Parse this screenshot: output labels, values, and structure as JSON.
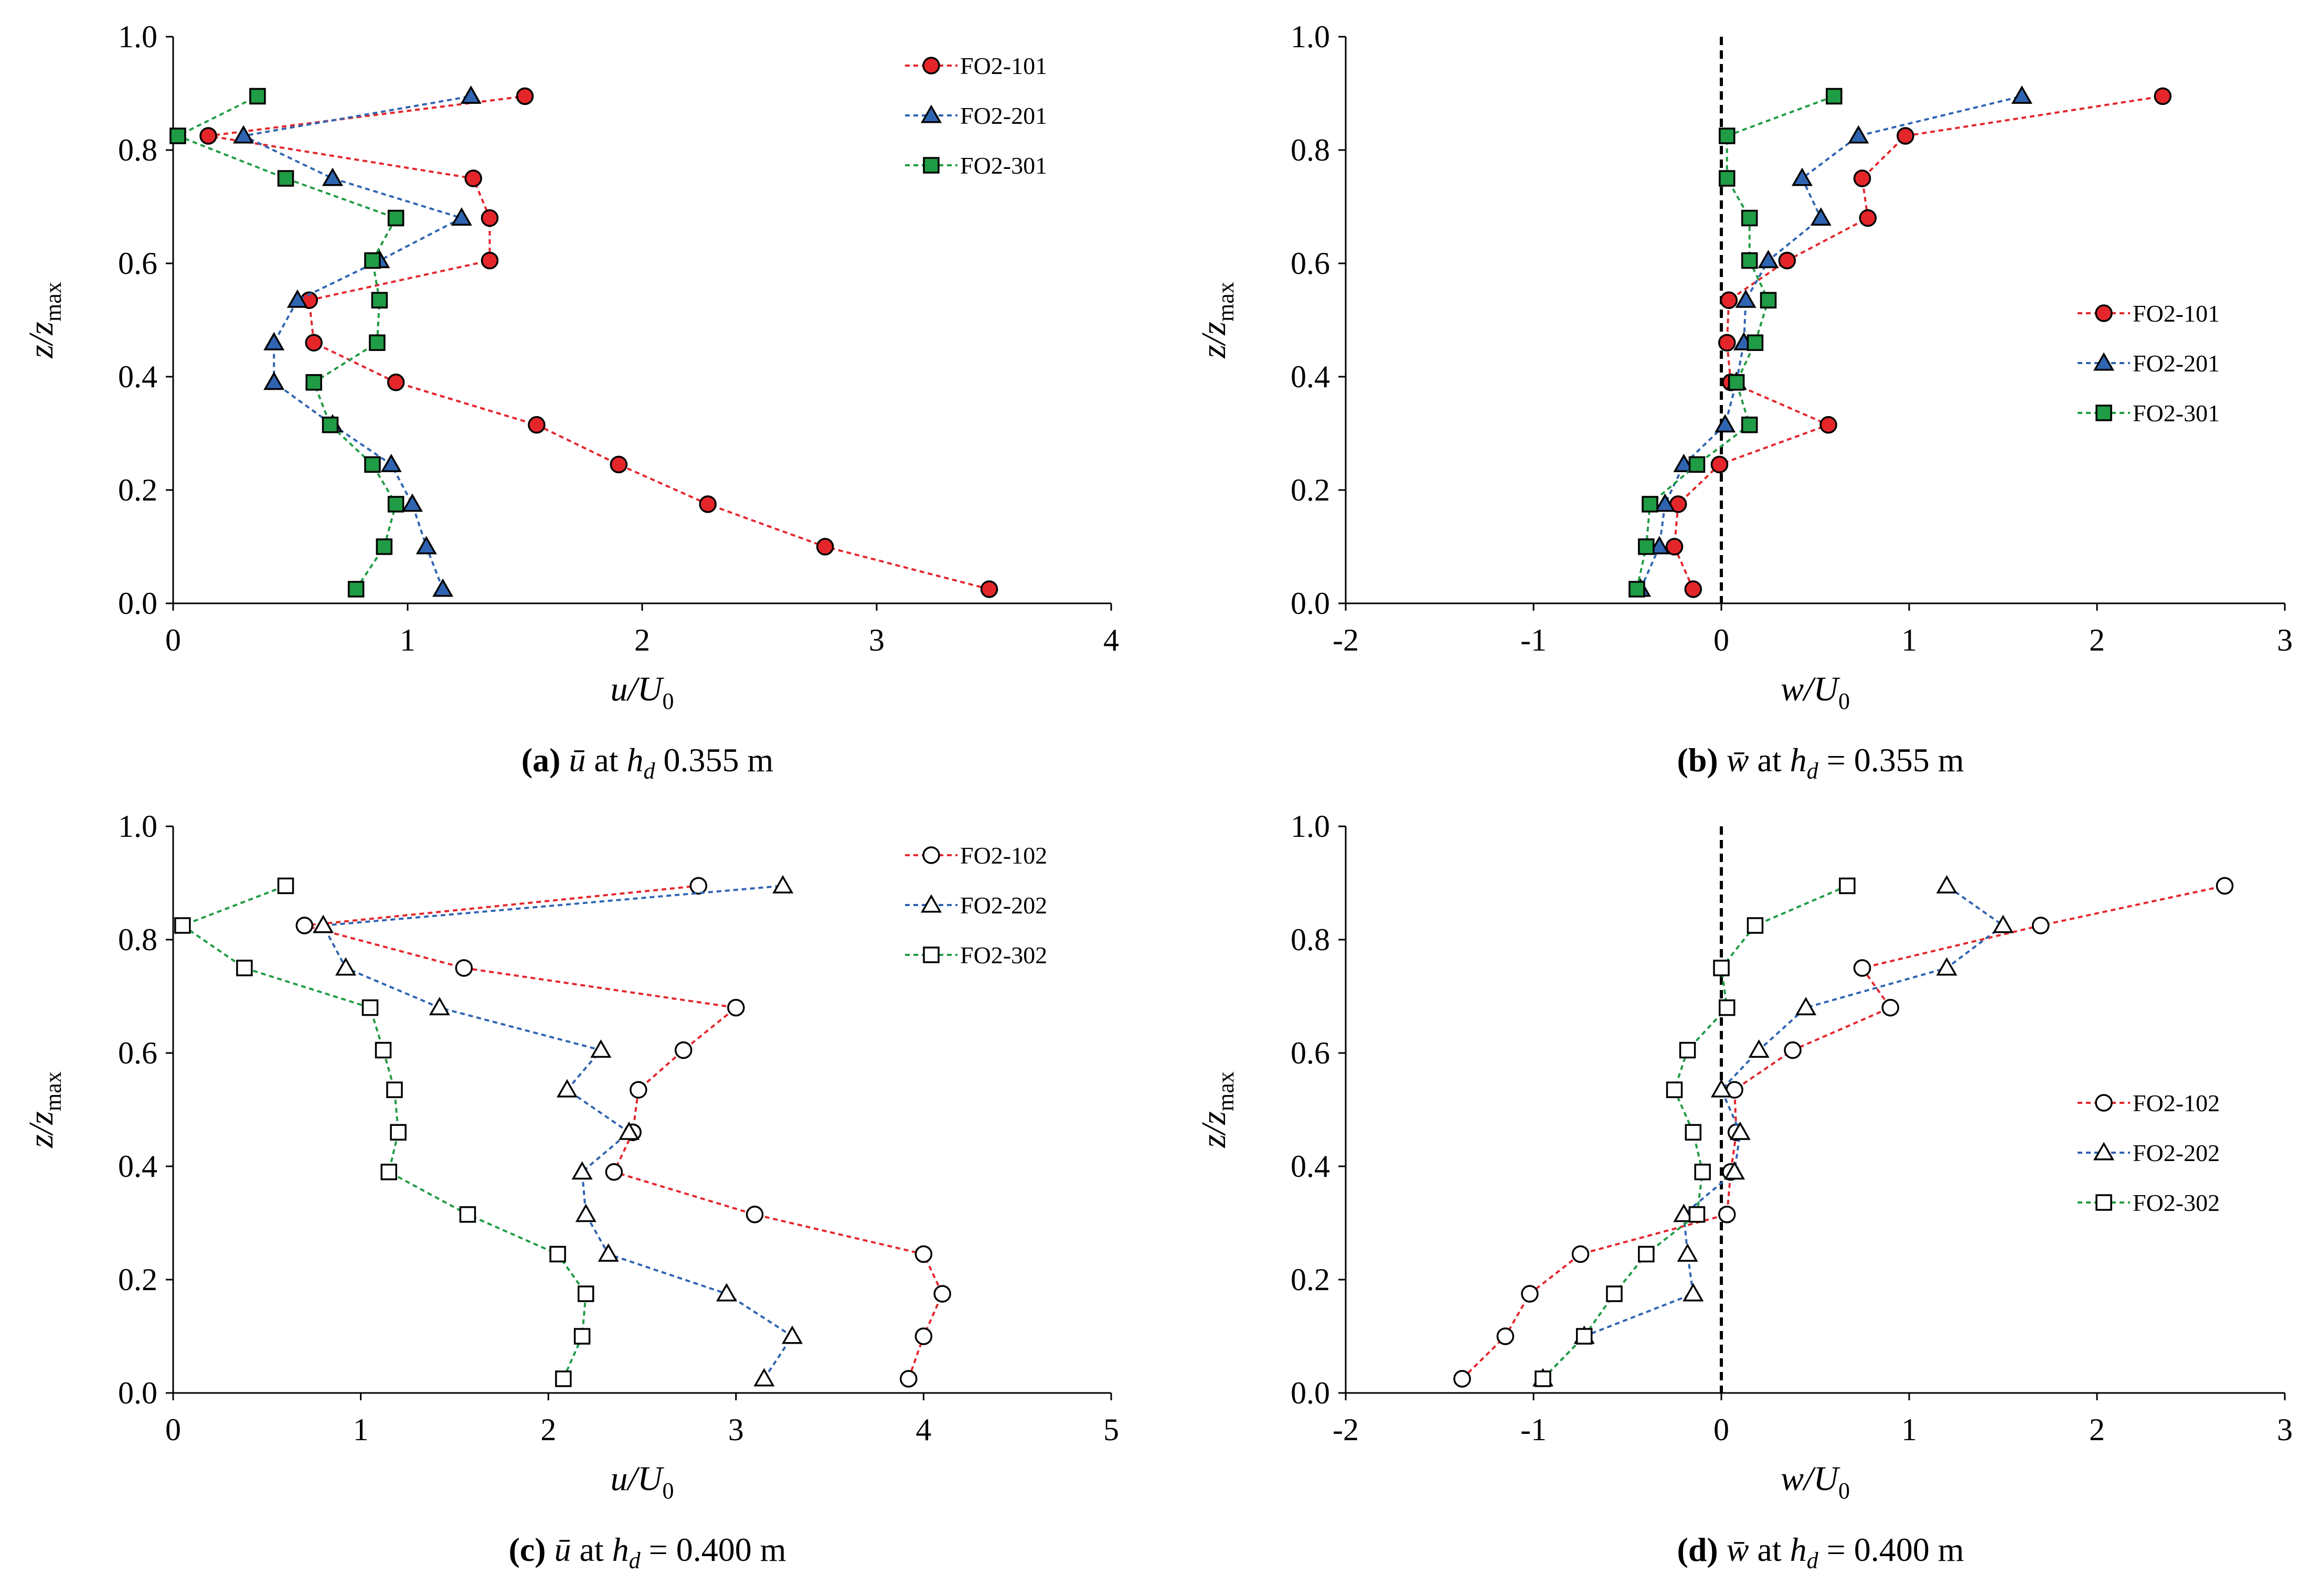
{
  "chart_data": [
    {
      "type": "scatter",
      "id": "a",
      "caption": {
        "label": "(a)",
        "symbol": "ū",
        "text": "at",
        "var": "h",
        "sub": "d",
        "value": "0.355 m"
      },
      "xlabel": "u/U",
      "xlabel_sub": "0",
      "ylabel": "z/z",
      "ylabel_sub": "max",
      "xlim": [
        0,
        4
      ],
      "ylim": [
        0,
        1.0
      ],
      "xticks": [
        "0",
        "1",
        "2",
        "3",
        "4"
      ],
      "yticks": [
        "0.0",
        "0.2",
        "0.4",
        "0.6",
        "0.8",
        "1.0"
      ],
      "zero_line": false,
      "legend": "top-right",
      "series": [
        {
          "name": "FO2-101",
          "color": "#e4262b",
          "marker": "circle",
          "filled": true,
          "x": [
            3.48,
            2.78,
            2.28,
            1.9,
            1.55,
            0.95,
            0.6,
            0.58,
            1.35,
            1.35,
            1.28,
            0.15,
            1.5
          ],
          "y": [
            0.025,
            0.1,
            0.175,
            0.245,
            0.315,
            0.39,
            0.46,
            0.535,
            0.605,
            0.68,
            0.75,
            0.825,
            0.895
          ]
        },
        {
          "name": "FO2-201",
          "color": "#2f64b1",
          "marker": "triangle",
          "filled": true,
          "x": [
            1.15,
            1.08,
            1.02,
            0.93,
            0.68,
            0.43,
            0.43,
            0.53,
            0.88,
            1.23,
            0.68,
            0.3,
            1.27
          ],
          "y": [
            0.025,
            0.1,
            0.175,
            0.245,
            0.315,
            0.39,
            0.46,
            0.535,
            0.605,
            0.68,
            0.75,
            0.825,
            0.895
          ]
        },
        {
          "name": "FO2-301",
          "color": "#1f9c45",
          "marker": "square",
          "filled": true,
          "x": [
            0.78,
            0.9,
            0.95,
            0.85,
            0.67,
            0.6,
            0.87,
            0.88,
            0.85,
            0.95,
            0.48,
            0.02,
            0.36
          ],
          "y": [
            0.025,
            0.1,
            0.175,
            0.245,
            0.315,
            0.39,
            0.46,
            0.535,
            0.605,
            0.68,
            0.75,
            0.825,
            0.895
          ]
        }
      ]
    },
    {
      "type": "scatter",
      "id": "b",
      "caption": {
        "label": "(b)",
        "symbol": "w̄",
        "text": "at",
        "var": "h",
        "sub": "d",
        "value": "= 0.355 m"
      },
      "xlabel": "w/U",
      "xlabel_sub": "0",
      "ylabel": "z/z",
      "ylabel_sub": "max",
      "xlim": [
        -2,
        3
      ],
      "ylim": [
        0,
        1.0
      ],
      "xticks": [
        "-2",
        "-1",
        "0",
        "1",
        "2",
        "3"
      ],
      "yticks": [
        "0.0",
        "0.2",
        "0.4",
        "0.6",
        "0.8",
        "1.0"
      ],
      "zero_line": true,
      "legend": "middle-right",
      "series": [
        {
          "name": "FO2-101",
          "color": "#e4262b",
          "marker": "circle",
          "filled": true,
          "x": [
            -0.15,
            -0.25,
            -0.23,
            -0.01,
            0.57,
            0.05,
            0.03,
            0.04,
            0.35,
            0.78,
            0.75,
            0.98,
            2.35
          ],
          "y": [
            0.025,
            0.1,
            0.175,
            0.245,
            0.315,
            0.39,
            0.46,
            0.535,
            0.605,
            0.68,
            0.75,
            0.825,
            0.895
          ]
        },
        {
          "name": "FO2-201",
          "color": "#2f64b1",
          "marker": "triangle",
          "filled": true,
          "x": [
            -0.43,
            -0.33,
            -0.3,
            -0.2,
            0.02,
            0.08,
            0.12,
            0.13,
            0.25,
            0.53,
            0.43,
            0.73,
            1.6
          ],
          "y": [
            0.025,
            0.1,
            0.175,
            0.245,
            0.315,
            0.39,
            0.46,
            0.535,
            0.605,
            0.68,
            0.75,
            0.825,
            0.895
          ]
        },
        {
          "name": "FO2-301",
          "color": "#1f9c45",
          "marker": "square",
          "filled": true,
          "x": [
            -0.45,
            -0.4,
            -0.38,
            -0.13,
            0.15,
            0.08,
            0.18,
            0.25,
            0.15,
            0.15,
            0.03,
            0.03,
            0.6
          ],
          "y": [
            0.025,
            0.1,
            0.175,
            0.245,
            0.315,
            0.39,
            0.46,
            0.535,
            0.605,
            0.68,
            0.75,
            0.825,
            0.895
          ]
        }
      ]
    },
    {
      "type": "scatter",
      "id": "c",
      "caption": {
        "label": "(c)",
        "symbol": "ū",
        "text": "at",
        "var": "h",
        "sub": "d",
        "value": "= 0.400 m"
      },
      "xlabel": "u/U",
      "xlabel_sub": "0",
      "ylabel": "z/z",
      "ylabel_sub": "max",
      "xlim": [
        0,
        5
      ],
      "ylim": [
        0,
        1.0
      ],
      "xticks": [
        "0",
        "1",
        "2",
        "3",
        "4",
        "5"
      ],
      "yticks": [
        "0.0",
        "0.2",
        "0.4",
        "0.6",
        "0.8",
        "1.0"
      ],
      "zero_line": false,
      "legend": "top-right",
      "series": [
        {
          "name": "FO2-102",
          "color": "#e4262b",
          "marker": "circle",
          "filled": false,
          "x": [
            3.92,
            4.0,
            4.1,
            4.0,
            3.1,
            2.35,
            2.45,
            2.48,
            2.72,
            3.0,
            1.55,
            0.7,
            2.8
          ],
          "y": [
            0.025,
            0.1,
            0.175,
            0.245,
            0.315,
            0.39,
            0.46,
            0.535,
            0.605,
            0.68,
            0.75,
            0.825,
            0.895
          ]
        },
        {
          "name": "FO2-202",
          "color": "#2f64b1",
          "marker": "triangle",
          "filled": false,
          "x": [
            3.15,
            3.3,
            2.95,
            2.32,
            2.2,
            2.18,
            2.43,
            2.1,
            2.28,
            1.42,
            0.92,
            0.8,
            3.25
          ],
          "y": [
            0.025,
            0.1,
            0.175,
            0.245,
            0.315,
            0.39,
            0.46,
            0.535,
            0.605,
            0.68,
            0.75,
            0.825,
            0.895
          ]
        },
        {
          "name": "FO2-302",
          "color": "#1f9c45",
          "marker": "square",
          "filled": false,
          "x": [
            2.08,
            2.18,
            2.2,
            2.05,
            1.57,
            1.15,
            1.2,
            1.18,
            1.12,
            1.05,
            0.38,
            0.05,
            0.6
          ],
          "y": [
            0.025,
            0.1,
            0.175,
            0.245,
            0.315,
            0.39,
            0.46,
            0.535,
            0.605,
            0.68,
            0.75,
            0.825,
            0.895
          ]
        }
      ]
    },
    {
      "type": "scatter",
      "id": "d",
      "caption": {
        "label": "(d)",
        "symbol": "w̄",
        "text": "at",
        "var": "h",
        "sub": "d",
        "value": "= 0.400 m"
      },
      "xlabel": "w/U",
      "xlabel_sub": "0",
      "ylabel": "z/z",
      "ylabel_sub": "max",
      "xlim": [
        -2,
        3
      ],
      "ylim": [
        0,
        1.0
      ],
      "xticks": [
        "-2",
        "-1",
        "0",
        "1",
        "2",
        "3"
      ],
      "yticks": [
        "0.0",
        "0.2",
        "0.4",
        "0.6",
        "0.8",
        "1.0"
      ],
      "zero_line": true,
      "legend": "middle-right",
      "series": [
        {
          "name": "FO2-102",
          "color": "#e4262b",
          "marker": "circle",
          "filled": false,
          "x": [
            -1.38,
            -1.15,
            -1.02,
            -0.75,
            0.03,
            0.05,
            0.08,
            0.07,
            0.38,
            0.9,
            0.75,
            1.7,
            2.68
          ],
          "y": [
            0.025,
            0.1,
            0.175,
            0.245,
            0.315,
            0.39,
            0.46,
            0.535,
            0.605,
            0.68,
            0.75,
            0.825,
            0.895
          ]
        },
        {
          "name": "FO2-202",
          "color": "#2f64b1",
          "marker": "triangle",
          "filled": false,
          "x": [
            -0.95,
            -0.73,
            -0.15,
            -0.18,
            -0.2,
            0.07,
            0.1,
            0.0,
            0.2,
            0.45,
            1.2,
            1.5,
            1.2
          ],
          "y": [
            0.025,
            0.1,
            0.175,
            0.245,
            0.315,
            0.39,
            0.46,
            0.535,
            0.605,
            0.68,
            0.75,
            0.825,
            0.895
          ]
        },
        {
          "name": "FO2-302",
          "color": "#1f9c45",
          "marker": "square",
          "filled": false,
          "x": [
            -0.95,
            -0.73,
            -0.57,
            -0.4,
            -0.13,
            -0.1,
            -0.15,
            -0.25,
            -0.18,
            0.03,
            0.0,
            0.18,
            0.67
          ],
          "y": [
            0.025,
            0.1,
            0.175,
            0.245,
            0.315,
            0.39,
            0.46,
            0.535,
            0.605,
            0.68,
            0.75,
            0.825,
            0.895
          ]
        }
      ]
    }
  ]
}
